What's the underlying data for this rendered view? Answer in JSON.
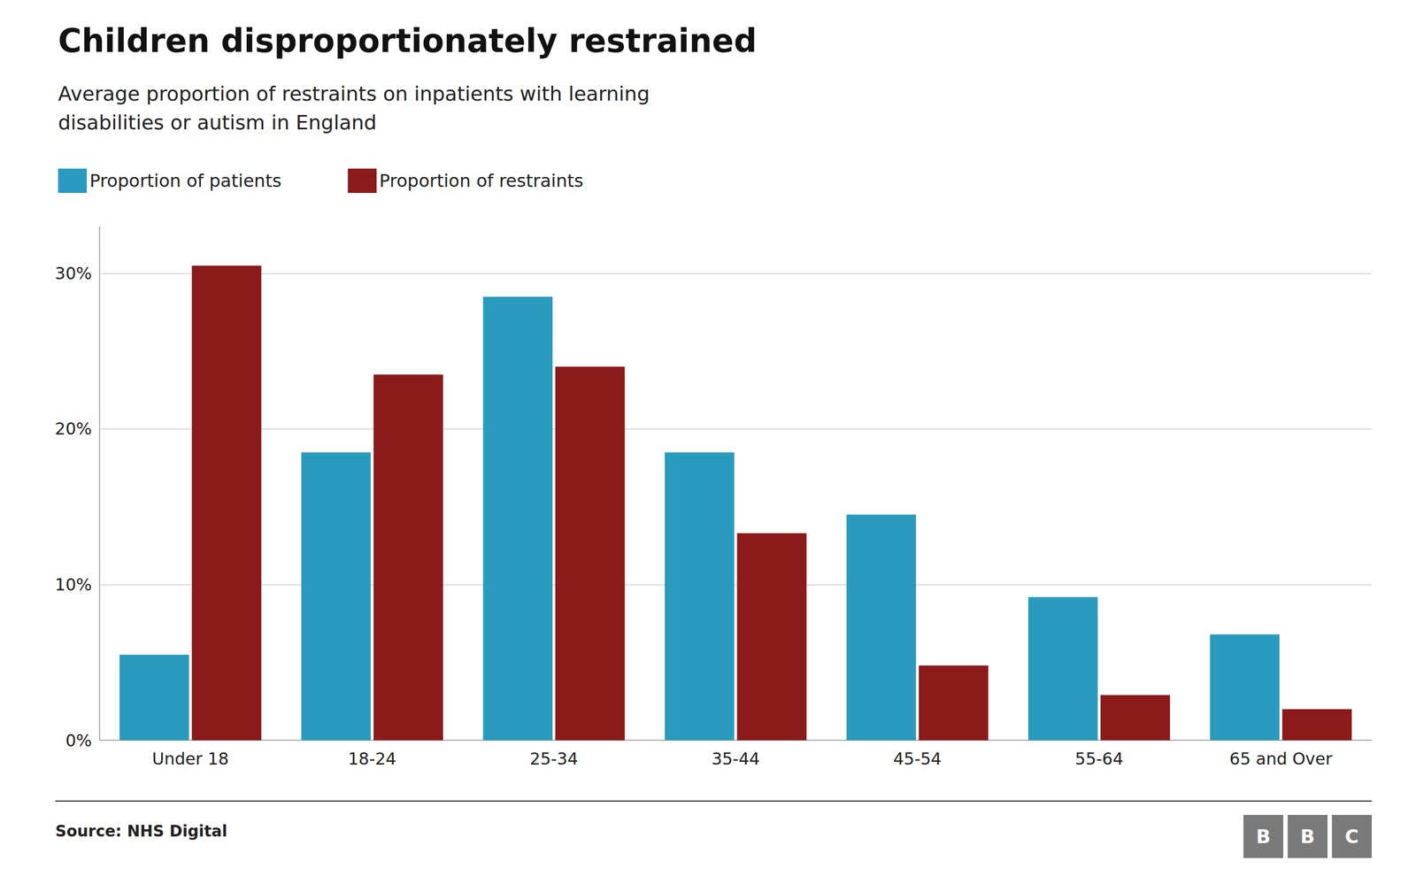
{
  "chart_data": {
    "type": "bar",
    "title": "Children disproportionately restrained",
    "subtitle": "Average proportion of restraints on inpatients with learning\ndisabilities or autism in England",
    "categories": [
      "Under 18",
      "18-24",
      "25-34",
      "35-44",
      "45-54",
      "55-64",
      "65 and Over"
    ],
    "series": [
      {
        "name": "Proportion of patients",
        "color": "#2a9bbf",
        "values": [
          5.5,
          18.5,
          28.5,
          18.5,
          14.5,
          9.2,
          6.8
        ]
      },
      {
        "name": "Proportion of restraints",
        "color": "#8b1a1a",
        "values": [
          30.5,
          23.5,
          24.0,
          13.3,
          4.8,
          2.9,
          2.0
        ]
      }
    ],
    "ylim": [
      0,
      33
    ],
    "yticks": [
      {
        "value": 0,
        "label": "0%"
      },
      {
        "value": 10,
        "label": "10%"
      },
      {
        "value": 20,
        "label": "20%"
      },
      {
        "value": 30,
        "label": "30%"
      }
    ],
    "grid": true,
    "legend": "upper left",
    "annotations": [
      "Source: NHS Digital",
      "BBC"
    ]
  }
}
